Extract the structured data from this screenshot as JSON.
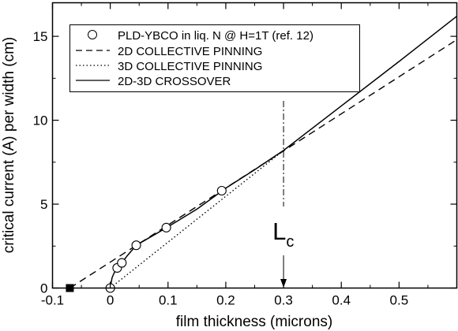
{
  "chart_data": {
    "type": "line",
    "xlabel": "film thickness (microns)",
    "ylabel": "critical current (A) per width (cm)",
    "xlim": [
      -0.1,
      0.6
    ],
    "ylim": [
      0,
      17
    ],
    "x_ticks": [
      -0.1,
      0,
      0.1,
      0.2,
      0.3,
      0.4,
      0.5
    ],
    "x_tick_labels": [
      "-0.1",
      "0",
      "0.1",
      "0.2",
      "0.3",
      "0.4",
      "0.5"
    ],
    "y_ticks": [
      0,
      5,
      10,
      15
    ],
    "y_tick_labels": [
      "0",
      "5",
      "10",
      "15"
    ],
    "grid": false,
    "legend_position": "top-left",
    "series": [
      {
        "name": "PLD-YBCO in liq. N @ H=1T  (ref. 12)",
        "style": "open-circle-markers",
        "x": [
          0.0,
          0.012,
          0.02,
          0.045,
          0.097,
          0.193
        ],
        "y": [
          0.0,
          1.2,
          1.5,
          2.55,
          3.6,
          5.8
        ]
      },
      {
        "name": "2D COLLECTIVE PINNING",
        "style": "dashed",
        "x": [
          -0.07,
          0.6
        ],
        "y": [
          0.0,
          14.8
        ]
      },
      {
        "name": "3D COLLECTIVE PINNING",
        "style": "dotted",
        "x": [
          0.0,
          0.3
        ],
        "y": [
          0.0,
          8.2
        ]
      },
      {
        "name": "2D-3D CROSSOVER",
        "style": "solid",
        "x": [
          0.0,
          0.003,
          0.006,
          0.009,
          0.012,
          0.015,
          0.02,
          0.03,
          0.045,
          0.06,
          0.08,
          0.1,
          0.15,
          0.2,
          0.25,
          0.3,
          0.4,
          0.5,
          0.6
        ],
        "y": [
          0.0,
          0.6,
          0.85,
          1.05,
          1.2,
          1.32,
          1.5,
          1.95,
          2.55,
          2.85,
          3.25,
          3.65,
          4.7,
          5.95,
          7.05,
          8.2,
          10.85,
          13.5,
          16.2
        ]
      }
    ],
    "annotations": {
      "lc_label_main": "L",
      "lc_label_sub": "c",
      "lc_x": 0.3,
      "square_marker_x": -0.07,
      "square_marker_y": 0
    }
  }
}
